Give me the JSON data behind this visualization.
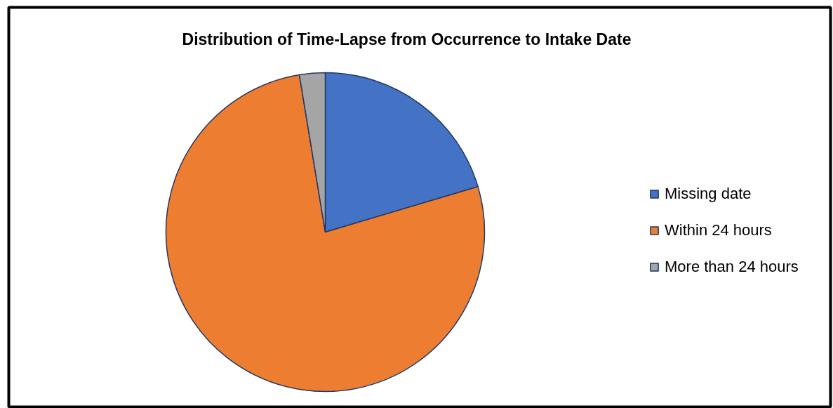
{
  "chart_data": {
    "type": "pie",
    "title": "Distribution of Time-Lapse from Occurrence to Intake Date",
    "categories": [
      "Missing date",
      "Within 24 hours",
      "More than 24 hours"
    ],
    "values": [
      20.4,
      77.0,
      2.6
    ],
    "colors": [
      "#4472c4",
      "#ed7d31",
      "#a5a5a5"
    ],
    "legend": "right"
  }
}
